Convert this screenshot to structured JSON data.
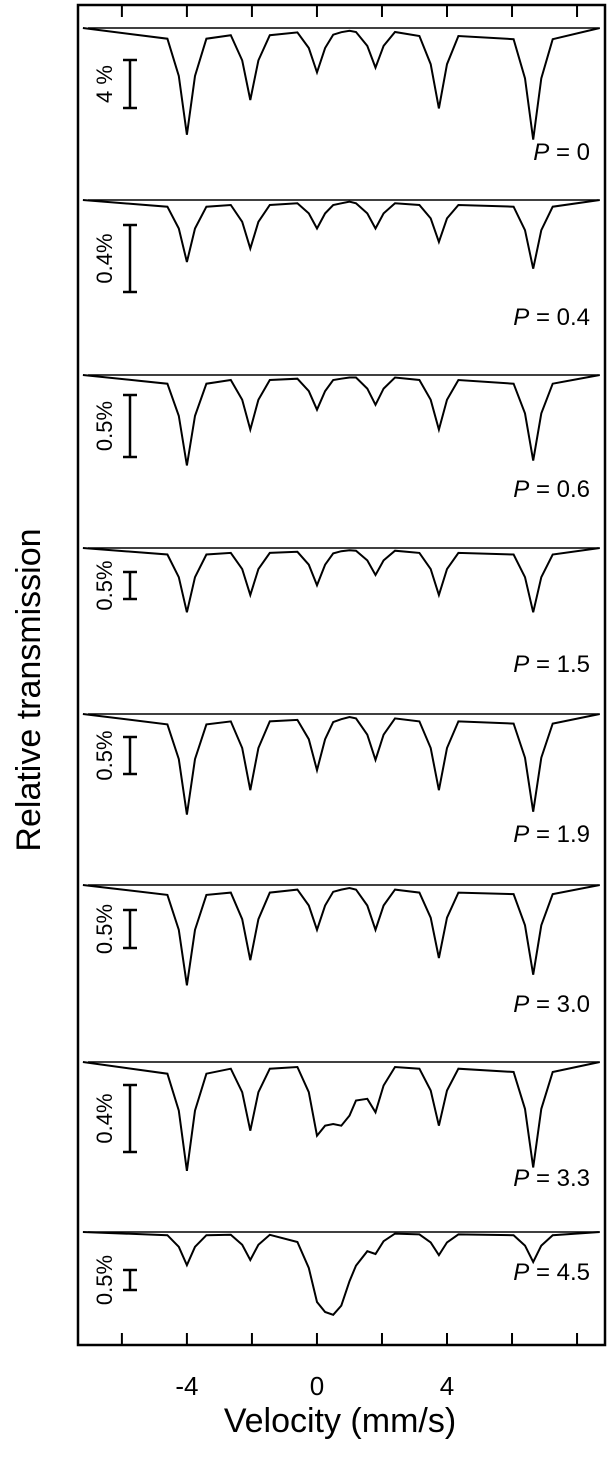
{
  "chart_data": {
    "type": "line",
    "xlabel": "Velocity (mm/s)",
    "ylabel": "Relative transmission",
    "xlim": [
      -7.35,
      8.86
    ],
    "xticks": [
      -4,
      0,
      4
    ],
    "xminorticks": [
      -6,
      -2,
      2,
      6,
      8
    ],
    "color": "#000000",
    "x": [
      -7.2,
      -4.6,
      -4.25,
      -4.0,
      -3.75,
      -3.4,
      -2.65,
      -2.3,
      -2.05,
      -1.8,
      -1.45,
      -0.6,
      -0.25,
      0.0,
      0.25,
      0.5,
      0.75,
      1.0,
      1.2,
      1.55,
      1.8,
      2.05,
      2.4,
      3.15,
      3.5,
      3.75,
      4.0,
      4.35,
      6.05,
      6.4,
      6.65,
      6.9,
      7.25,
      8.7
    ],
    "series": [
      {
        "name": "P = 0",
        "scale_bar": {
          "value": 4,
          "label": "4 %"
        },
        "values": [
          0,
          -0.89,
          -4.0,
          -8.9,
          -4.0,
          -0.89,
          -0.6,
          -2.7,
          -6.0,
          -2.7,
          -0.6,
          -0.37,
          -1.67,
          -3.7,
          -1.67,
          -0.56,
          -0.35,
          -0.23,
          -0.33,
          -1.49,
          -3.3,
          -1.49,
          -0.33,
          -0.67,
          -3.02,
          -6.7,
          -3.02,
          -0.67,
          -0.93,
          -4.19,
          -9.3,
          -4.19,
          -0.93,
          0
        ]
      },
      {
        "name": "P = 0.4",
        "scale_bar": {
          "value": 0.4,
          "label": "0.4%"
        },
        "values": [
          0,
          -0.04,
          -0.17,
          -0.37,
          -0.17,
          -0.04,
          -0.03,
          -0.13,
          -0.29,
          -0.13,
          -0.03,
          -0.02,
          -0.08,
          -0.17,
          -0.08,
          -0.03,
          -0.02,
          -0.01,
          -0.02,
          -0.08,
          -0.17,
          -0.08,
          -0.02,
          -0.03,
          -0.11,
          -0.25,
          -0.11,
          -0.03,
          -0.04,
          -0.18,
          -0.41,
          -0.18,
          -0.04,
          0
        ]
      },
      {
        "name": "P = 0.6",
        "scale_bar": {
          "value": 0.5,
          "label": "0.5%"
        },
        "values": [
          0,
          -0.07,
          -0.33,
          -0.73,
          -0.33,
          -0.07,
          -0.04,
          -0.2,
          -0.44,
          -0.2,
          -0.04,
          -0.03,
          -0.13,
          -0.28,
          -0.13,
          -0.04,
          -0.03,
          -0.02,
          -0.02,
          -0.11,
          -0.24,
          -0.11,
          -0.02,
          -0.04,
          -0.2,
          -0.44,
          -0.2,
          -0.04,
          -0.07,
          -0.31,
          -0.69,
          -0.31,
          -0.07,
          0
        ]
      },
      {
        "name": "P = 1.5",
        "scale_bar": {
          "value": 0.5,
          "label": "0.5%"
        },
        "values": [
          0,
          -0.12,
          -0.54,
          -1.19,
          -0.54,
          -0.12,
          -0.09,
          -0.39,
          -0.87,
          -0.39,
          -0.09,
          -0.07,
          -0.31,
          -0.69,
          -0.31,
          -0.1,
          -0.06,
          -0.04,
          -0.05,
          -0.23,
          -0.5,
          -0.23,
          -0.05,
          -0.09,
          -0.39,
          -0.87,
          -0.39,
          -0.09,
          -0.12,
          -0.54,
          -1.19,
          -0.54,
          -0.12,
          0
        ]
      },
      {
        "name": "P = 1.9",
        "scale_bar": {
          "value": 0.5,
          "label": "0.5%"
        },
        "values": [
          0,
          -0.14,
          -0.61,
          -1.36,
          -0.61,
          -0.14,
          -0.1,
          -0.46,
          -1.03,
          -0.46,
          -0.1,
          -0.08,
          -0.34,
          -0.76,
          -0.34,
          -0.11,
          -0.07,
          -0.04,
          -0.06,
          -0.28,
          -0.62,
          -0.28,
          -0.06,
          -0.1,
          -0.46,
          -1.03,
          -0.46,
          -0.1,
          -0.13,
          -0.59,
          -1.32,
          -0.59,
          -0.13,
          0
        ]
      },
      {
        "name": "P = 3.0",
        "scale_bar": {
          "value": 0.5,
          "label": "0.5%"
        },
        "values": [
          0,
          -0.13,
          -0.59,
          -1.32,
          -0.59,
          -0.13,
          -0.1,
          -0.45,
          -0.99,
          -0.45,
          -0.1,
          -0.06,
          -0.27,
          -0.59,
          -0.27,
          -0.09,
          -0.06,
          -0.04,
          -0.06,
          -0.27,
          -0.59,
          -0.27,
          -0.06,
          -0.1,
          -0.43,
          -0.96,
          -0.43,
          -0.1,
          -0.12,
          -0.53,
          -1.18,
          -0.53,
          -0.12,
          0
        ]
      },
      {
        "name": "P = 3.3",
        "scale_bar": {
          "value": 0.4,
          "label": "0.4%"
        },
        "values": [
          0,
          -0.07,
          -0.29,
          -0.65,
          -0.29,
          -0.07,
          -0.04,
          -0.18,
          -0.41,
          -0.18,
          -0.04,
          -0.03,
          -0.18,
          -0.44,
          -0.38,
          -0.37,
          -0.38,
          -0.32,
          -0.23,
          -0.22,
          -0.3,
          -0.14,
          -0.03,
          -0.04,
          -0.17,
          -0.38,
          -0.17,
          -0.04,
          -0.06,
          -0.28,
          -0.63,
          -0.28,
          -0.06,
          0
        ]
      },
      {
        "name": "P = 4.5",
        "scale_bar": {
          "value": 0.5,
          "label": "0.5%"
        },
        "values": [
          0,
          -0.08,
          -0.37,
          -0.83,
          -0.37,
          -0.08,
          -0.07,
          -0.32,
          -0.7,
          -0.32,
          -0.07,
          -0.25,
          -0.9,
          -1.75,
          -2.0,
          -2.07,
          -1.84,
          -1.23,
          -0.84,
          -0.48,
          -0.55,
          -0.23,
          -0.04,
          -0.06,
          -0.26,
          -0.58,
          -0.26,
          -0.06,
          -0.08,
          -0.34,
          -0.75,
          -0.34,
          -0.08,
          0
        ]
      }
    ]
  }
}
